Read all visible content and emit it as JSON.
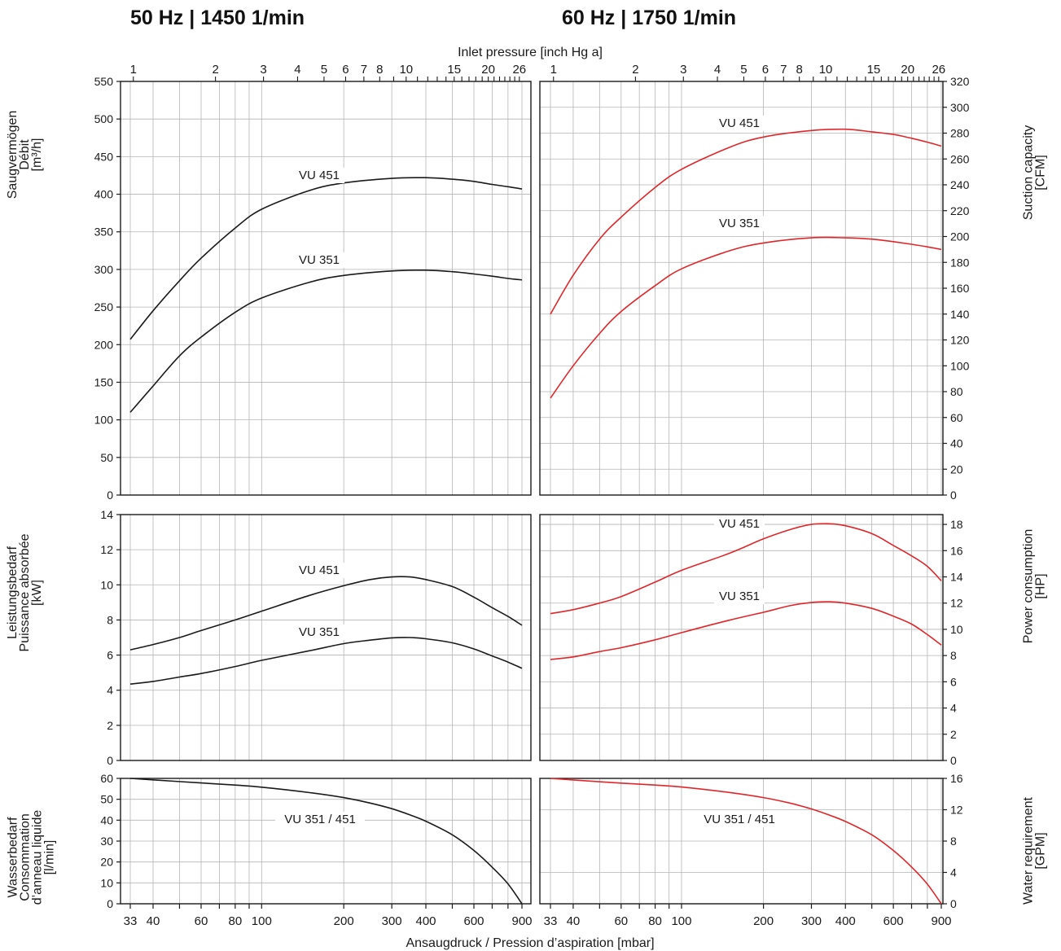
{
  "titles": {
    "left": "50 Hz | 1450 1/min",
    "right": "60 Hz | 1750 1/min"
  },
  "axis_labels": {
    "top": "Inlet pressure [inch Hg a]",
    "bottom": "Ansaugdruck / Pression d’aspiration [mbar]",
    "suction_left": [
      "Saugvermögen",
      "Débit",
      "[m³/h]"
    ],
    "suction_right": [
      "Suction capacity",
      "[CFM]"
    ],
    "power_left": [
      "Leistungsbedarf",
      "Puissance absorbée",
      "[kW]"
    ],
    "power_right": [
      "Power consumption",
      "[HP]"
    ],
    "water_left": [
      "Wasserbedarf",
      "Consommation",
      "d’anneau liquide",
      "[l/min]"
    ],
    "water_right": [
      "Water requirement",
      "[GPM]"
    ]
  },
  "colors": {
    "curve_50hz": "#1a1a1a",
    "curve_60hz": "#e0262b",
    "grid": "#b5b5b5",
    "axis": "#1a1a1a"
  },
  "chart_data": {
    "type": "line",
    "x_scale": "log",
    "x_unit": "mbar",
    "x_range": [
      33,
      900
    ],
    "x_ticks": [
      33,
      40,
      60,
      80,
      100,
      200,
      300,
      400,
      600,
      900
    ],
    "x_ticks_top": [
      "1",
      "2",
      "3",
      "4",
      "5",
      "6",
      "7",
      "8",
      "10",
      "15",
      "20",
      "26"
    ],
    "grid": true,
    "panels": [
      {
        "name": "suction-50hz",
        "ylim": [
          0,
          550
        ],
        "yticks": [
          0,
          50,
          100,
          150,
          200,
          250,
          300,
          350,
          400,
          450,
          500,
          550
        ],
        "series": [
          {
            "name": "VU 451",
            "x": [
              33,
              40,
              50,
              60,
              80,
              100,
              150,
              200,
              300,
              400,
              500,
              600,
              700,
              800,
              900
            ],
            "y": [
              207,
              245,
              285,
              315,
              355,
              380,
              405,
              415,
              421,
              422,
              420,
              417,
              413,
              410,
              407
            ]
          },
          {
            "name": "VU 351",
            "x": [
              33,
              40,
              50,
              60,
              80,
              100,
              150,
              200,
              300,
              400,
              500,
              600,
              700,
              800,
              900
            ],
            "y": [
              110,
              145,
              185,
              210,
              243,
              262,
              283,
              292,
              298,
              299,
              297,
              294,
              291,
              288,
              286
            ]
          }
        ]
      },
      {
        "name": "suction-60hz",
        "ylim": [
          0,
          320
        ],
        "yticks": [
          0,
          20,
          40,
          60,
          80,
          100,
          120,
          140,
          160,
          180,
          200,
          220,
          240,
          260,
          280,
          300,
          320
        ],
        "series": [
          {
            "name": "VU 451",
            "x": [
              33,
              40,
              50,
              60,
              80,
              100,
              150,
              200,
              300,
              400,
              500,
              600,
              700,
              800,
              900
            ],
            "y": [
              140,
              170,
              198,
              215,
              238,
              252,
              269,
              277,
              282,
              283,
              281,
              279,
              276,
              273,
              270
            ]
          },
          {
            "name": "VU 351",
            "x": [
              33,
              40,
              50,
              60,
              80,
              100,
              150,
              200,
              300,
              400,
              500,
              600,
              700,
              800,
              900
            ],
            "y": [
              75,
              100,
              125,
              142,
              162,
              175,
              189,
              195,
              199,
              199,
              198,
              196,
              194,
              192,
              190
            ]
          }
        ]
      },
      {
        "name": "power-50hz",
        "ylim": [
          0,
          14
        ],
        "yticks": [
          0,
          2,
          4,
          6,
          8,
          10,
          12,
          14
        ],
        "series": [
          {
            "name": "VU 451",
            "x": [
              33,
              40,
              50,
              60,
              80,
              100,
              150,
              200,
              250,
              300,
              350,
              400,
              500,
              600,
              700,
              800,
              900
            ],
            "y": [
              6.3,
              6.6,
              7.0,
              7.4,
              8.0,
              8.5,
              9.4,
              9.95,
              10.3,
              10.45,
              10.45,
              10.3,
              9.9,
              9.3,
              8.7,
              8.2,
              7.7
            ]
          },
          {
            "name": "VU 351",
            "x": [
              33,
              40,
              50,
              60,
              80,
              100,
              150,
              200,
              250,
              300,
              350,
              400,
              500,
              600,
              700,
              800,
              900
            ],
            "y": [
              4.35,
              4.5,
              4.75,
              4.95,
              5.35,
              5.7,
              6.25,
              6.65,
              6.85,
              6.98,
              7.0,
              6.93,
              6.7,
              6.35,
              5.95,
              5.6,
              5.25
            ]
          }
        ]
      },
      {
        "name": "power-60hz",
        "ylim": [
          0,
          18.75
        ],
        "yticks": [
          0,
          2,
          4,
          6,
          8,
          10,
          12,
          14,
          16,
          18
        ],
        "series": [
          {
            "name": "VU 451",
            "x": [
              33,
              40,
              50,
              60,
              80,
              100,
              150,
              200,
              250,
              300,
              350,
              400,
              500,
              600,
              700,
              800,
              900
            ],
            "y": [
              11.2,
              11.5,
              12.0,
              12.5,
              13.6,
              14.5,
              15.8,
              16.9,
              17.6,
              18.0,
              18.05,
              17.9,
              17.3,
              16.4,
              15.6,
              14.8,
              13.7
            ]
          },
          {
            "name": "VU 351",
            "x": [
              33,
              40,
              50,
              60,
              80,
              100,
              150,
              200,
              250,
              300,
              350,
              400,
              500,
              600,
              700,
              800,
              900
            ],
            "y": [
              7.7,
              7.9,
              8.3,
              8.6,
              9.2,
              9.75,
              10.7,
              11.3,
              11.8,
              12.05,
              12.1,
              12.0,
              11.6,
              11.0,
              10.4,
              9.6,
              8.8
            ]
          }
        ]
      },
      {
        "name": "water-50hz",
        "ylim": [
          0,
          60
        ],
        "yticks": [
          0,
          10,
          20,
          30,
          40,
          50,
          60
        ],
        "series": [
          {
            "name": "VU 351 / 451",
            "x": [
              33,
              40,
              60,
              80,
              100,
              150,
              200,
              250,
              300,
              350,
              400,
              500,
              600,
              700,
              800,
              900
            ],
            "y": [
              60,
              59.3,
              57.8,
              56.8,
              55.8,
              53.2,
              50.8,
              48.2,
              45.5,
              42.5,
              39.5,
              33.0,
              25.5,
              17.5,
              9.5,
              0
            ]
          }
        ]
      },
      {
        "name": "water-60hz",
        "ylim": [
          0,
          16
        ],
        "yticks": [
          0,
          4,
          8,
          12,
          16
        ],
        "series": [
          {
            "name": "VU 351 / 451",
            "x": [
              33,
              40,
              60,
              80,
              100,
              150,
              200,
              250,
              300,
              350,
              400,
              500,
              600,
              700,
              800,
              900
            ],
            "y": [
              16,
              15.8,
              15.4,
              15.15,
              14.9,
              14.2,
              13.55,
              12.85,
              12.1,
              11.3,
              10.5,
              8.8,
              6.8,
              4.7,
              2.5,
              0
            ]
          }
        ]
      }
    ]
  }
}
